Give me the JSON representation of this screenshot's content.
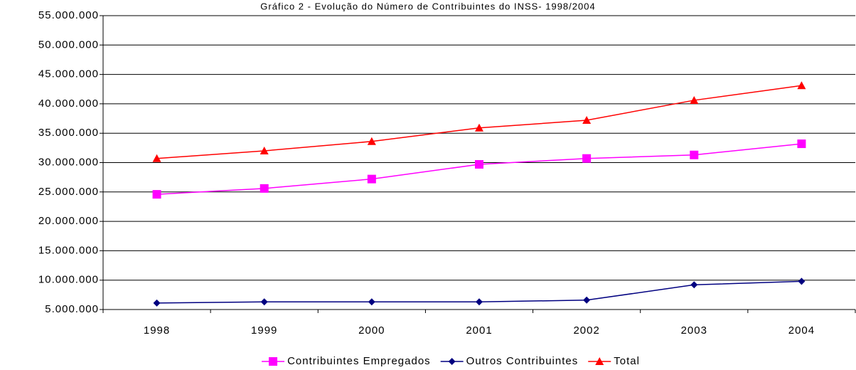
{
  "chart_data": {
    "type": "line",
    "title": "Gráfico 2 - Evolução do Número de Contribuintes do INSS- 1998/2004",
    "categories": [
      "1998",
      "1999",
      "2000",
      "2001",
      "2002",
      "2003",
      "2004"
    ],
    "series": [
      {
        "name": "Contribuintes Empregados",
        "color": "#ff00ff",
        "marker": "square",
        "values": [
          24600000,
          25600000,
          27200000,
          29700000,
          30700000,
          31300000,
          33200000
        ]
      },
      {
        "name": "Outros Contribuintes",
        "color": "#000080",
        "marker": "diamond",
        "values": [
          6100000,
          6300000,
          6300000,
          6300000,
          6600000,
          9200000,
          9800000
        ]
      },
      {
        "name": "Total",
        "color": "#ff0000",
        "marker": "triangle",
        "values": [
          30700000,
          32000000,
          33600000,
          35900000,
          37200000,
          40600000,
          43100000
        ]
      }
    ],
    "ylim": [
      5000000,
      55000000
    ],
    "yticks": [
      {
        "value": 5000000,
        "label": "5.000.000"
      },
      {
        "value": 10000000,
        "label": "10.000.000"
      },
      {
        "value": 15000000,
        "label": "15.000.000"
      },
      {
        "value": 20000000,
        "label": "20.000.000"
      },
      {
        "value": 25000000,
        "label": "25.000.000"
      },
      {
        "value": 30000000,
        "label": "30.000.000"
      },
      {
        "value": 35000000,
        "label": "35.000.000"
      },
      {
        "value": 40000000,
        "label": "40.000.000"
      },
      {
        "value": 45000000,
        "label": "45.000.000"
      },
      {
        "value": 50000000,
        "label": "50.000.000"
      },
      {
        "value": 55000000,
        "label": "55.000.000"
      }
    ],
    "grid": true,
    "legend": "bottom"
  }
}
